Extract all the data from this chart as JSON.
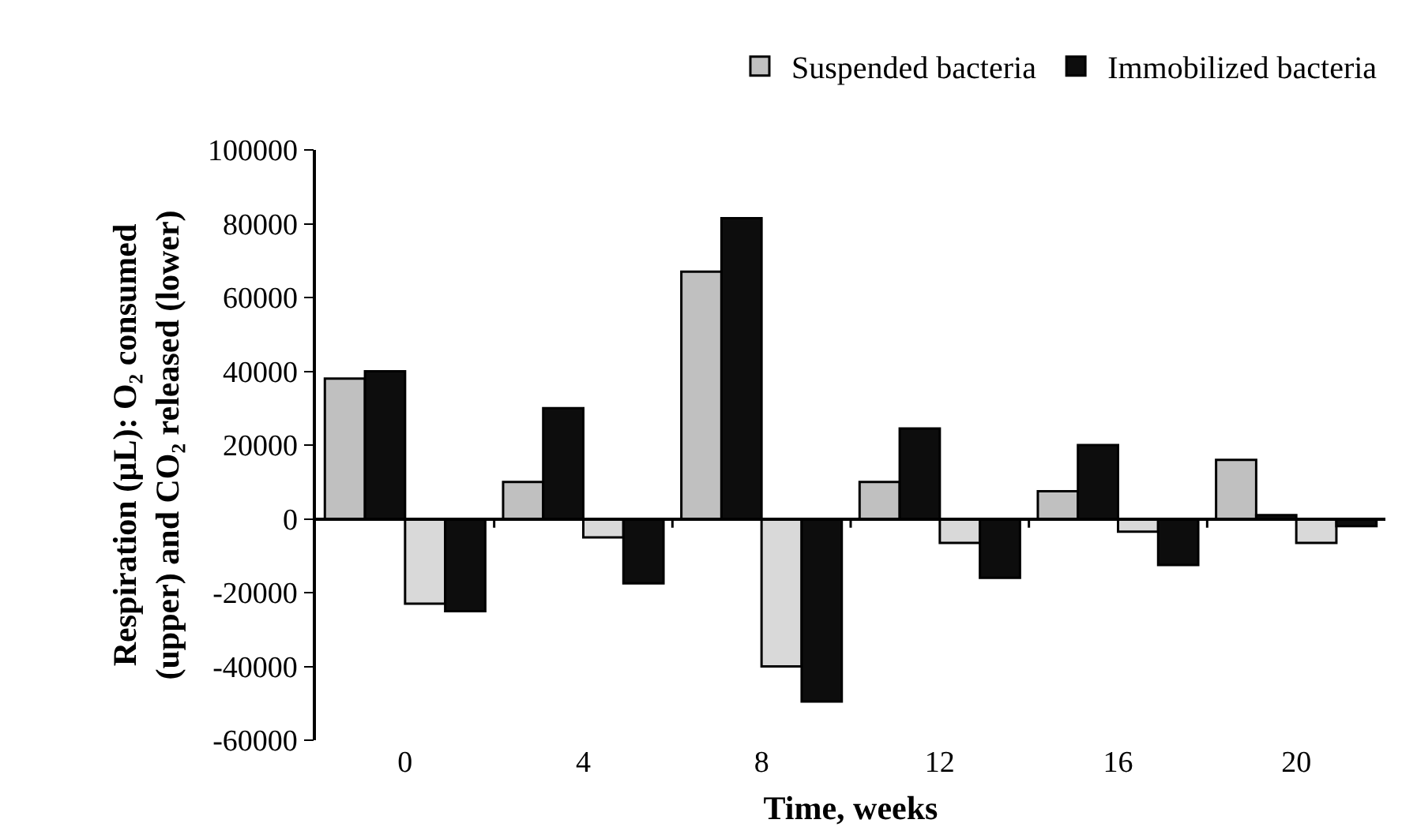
{
  "chart_data": {
    "type": "bar",
    "xlabel": "Time, weeks",
    "ylabel": "Respiration (µL): O₂ consumed (upper) and CO₂ released (lower)",
    "categories": [
      "0",
      "4",
      "8",
      "12",
      "16",
      "20"
    ],
    "series": [
      {
        "name": "Suspended bacteria",
        "color": "#c0c0c0",
        "values": [
          38000,
          10000,
          67000,
          10000,
          7500,
          16000
        ]
      },
      {
        "name": "Immobilized bacteria",
        "color": "#0d0d0d",
        "values": [
          40000,
          30000,
          81500,
          24500,
          20000,
          1000
        ]
      },
      {
        "color": "#d9d9d9",
        "values": [
          -23000,
          -5000,
          -40000,
          -6500,
          -3500,
          -6500
        ]
      },
      {
        "color": "#0d0d0d",
        "values": [
          -25000,
          -17500,
          -49500,
          -16000,
          -12500,
          -2000
        ]
      }
    ],
    "ylim": [
      -60000,
      100000
    ],
    "yticks": [
      -60000,
      -40000,
      -20000,
      0,
      20000,
      40000,
      60000,
      80000,
      100000
    ],
    "legend": "top right"
  }
}
